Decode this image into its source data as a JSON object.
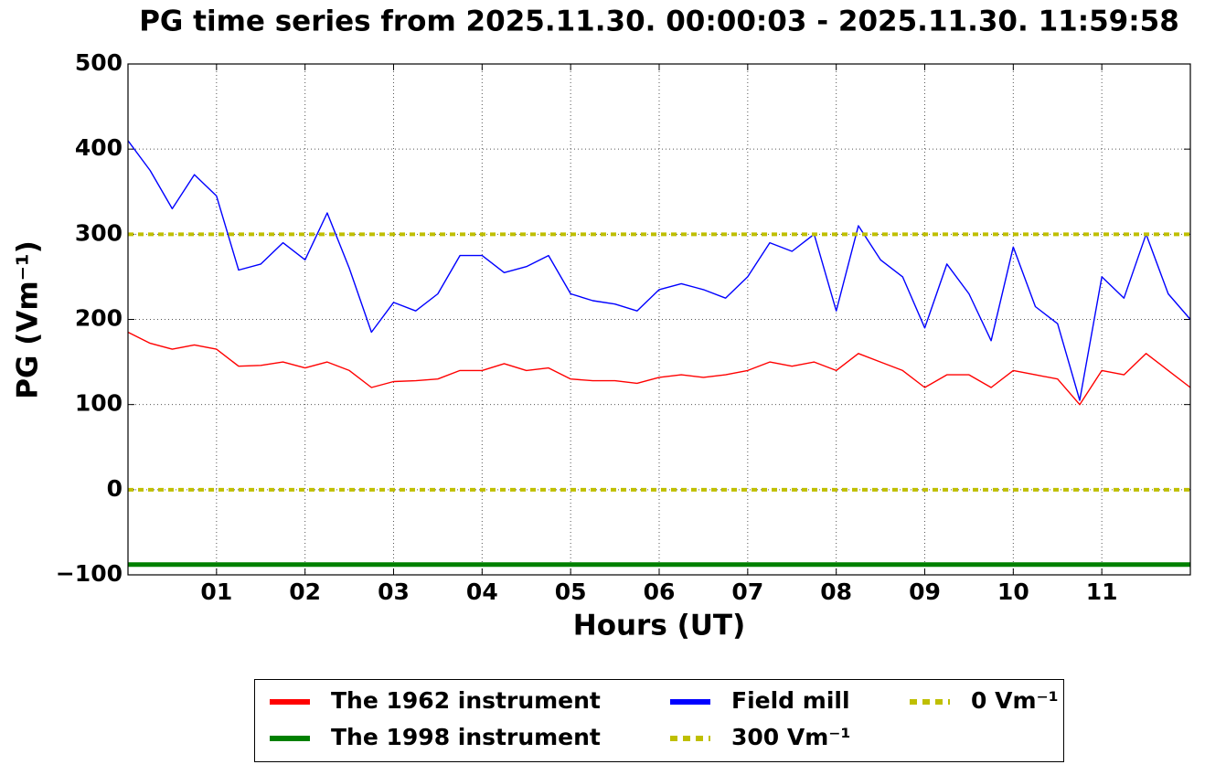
{
  "chart_data": {
    "type": "line",
    "title": "PG time series from 2025.11.30. 00:00:03 - 2025.11.30. 11:59:58",
    "xlabel": "Hours (UT)",
    "ylabel": "PG (Vm⁻¹)",
    "x": [
      0,
      0.25,
      0.5,
      0.75,
      1,
      1.25,
      1.5,
      1.75,
      2,
      2.25,
      2.5,
      2.75,
      3,
      3.25,
      3.5,
      3.75,
      4,
      4.25,
      4.5,
      4.75,
      5,
      5.25,
      5.5,
      5.75,
      6,
      6.25,
      6.5,
      6.75,
      7,
      7.25,
      7.5,
      7.75,
      8,
      8.25,
      8.5,
      8.75,
      9,
      9.25,
      9.5,
      9.75,
      10,
      10.25,
      10.5,
      10.75,
      11,
      11.25,
      11.5,
      11.75,
      12
    ],
    "series": [
      {
        "name": "The 1962 instrument",
        "color": "#ff0000",
        "values": [
          185,
          172,
          165,
          170,
          165,
          145,
          146,
          150,
          143,
          150,
          140,
          120,
          127,
          128,
          130,
          140,
          140,
          148,
          140,
          143,
          130,
          128,
          128,
          125,
          132,
          135,
          132,
          135,
          140,
          150,
          145,
          150,
          140,
          160,
          150,
          140,
          120,
          135,
          135,
          120,
          140,
          135,
          130,
          100,
          140,
          135,
          160,
          140,
          120
        ]
      },
      {
        "name": "The 1998 instrument",
        "color": "#008000",
        "values": [
          -88,
          -88,
          -88,
          -88,
          -88,
          -88,
          -88,
          -88,
          -88,
          -88,
          -88,
          -88,
          -88,
          -88,
          -88,
          -88,
          -88,
          -88,
          -88,
          -88,
          -88,
          -88,
          -88,
          -88,
          -88,
          -88,
          -88,
          -88,
          -88,
          -88,
          -88,
          -88,
          -88,
          -88,
          -88,
          -88,
          -88,
          -88,
          -88,
          -88,
          -88,
          -88,
          -88,
          -88,
          -88,
          -88,
          -88,
          -88,
          -88
        ]
      },
      {
        "name": "Field mill",
        "color": "#0000ff",
        "values": [
          410,
          375,
          330,
          370,
          345,
          258,
          265,
          290,
          270,
          325,
          260,
          185,
          220,
          210,
          230,
          275,
          275,
          255,
          262,
          275,
          230,
          222,
          218,
          210,
          235,
          242,
          235,
          225,
          250,
          290,
          280,
          300,
          210,
          310,
          270,
          250,
          190,
          265,
          230,
          175,
          285,
          215,
          195,
          105,
          250,
          225,
          300,
          230,
          200
        ]
      },
      {
        "name": "300 Vm⁻¹",
        "color": "#bfbf00",
        "value": 300,
        "dashed": true
      },
      {
        "name": "0 Vm⁻¹",
        "color": "#bfbf00",
        "value": 0,
        "dashed": true
      }
    ],
    "xlim": [
      0,
      12
    ],
    "xticks": [
      {
        "value": 1,
        "label": "01"
      },
      {
        "value": 2,
        "label": "02"
      },
      {
        "value": 3,
        "label": "03"
      },
      {
        "value": 4,
        "label": "04"
      },
      {
        "value": 5,
        "label": "05"
      },
      {
        "value": 6,
        "label": "06"
      },
      {
        "value": 7,
        "label": "07"
      },
      {
        "value": 8,
        "label": "08"
      },
      {
        "value": 9,
        "label": "09"
      },
      {
        "value": 10,
        "label": "10"
      },
      {
        "value": 11,
        "label": "11"
      }
    ],
    "ylim": [
      -100,
      500
    ],
    "yticks": [
      {
        "value": -100,
        "label": "−100"
      },
      0,
      100,
      200,
      300,
      400,
      500
    ],
    "grid": true,
    "legend": "bottom"
  }
}
